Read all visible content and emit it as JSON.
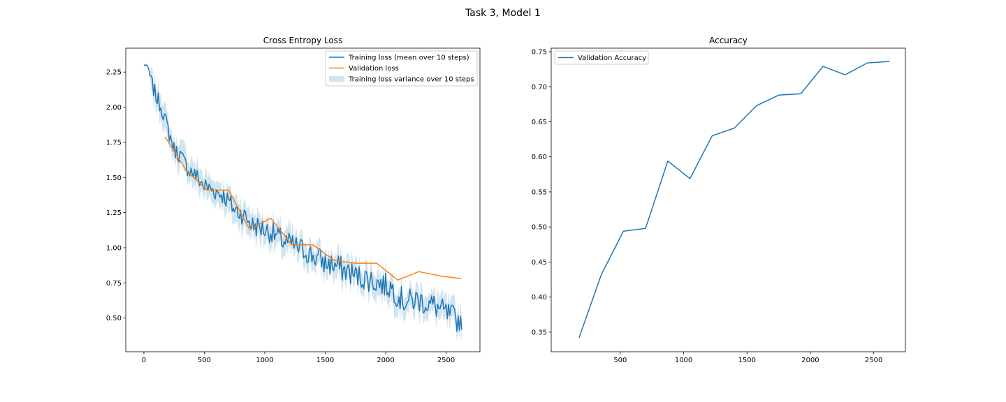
{
  "figure": {
    "suptitle": "Task 3, Model 1"
  },
  "colors": {
    "train": "#1f77b4",
    "val": "#ff7f0e",
    "band": "#1f77b4"
  },
  "chart_data": [
    {
      "type": "line",
      "title": "Cross Entropy Loss",
      "xlabel": "",
      "ylabel": "",
      "xlim": [
        -150,
        2780
      ],
      "ylim": [
        0.26,
        2.42
      ],
      "xticks": [
        0,
        500,
        1000,
        1500,
        2000,
        2500
      ],
      "yticks": [
        0.5,
        0.75,
        1.0,
        1.25,
        1.5,
        1.75,
        2.0,
        2.25
      ],
      "legend_loc": "upper right",
      "legend": [
        "Training loss (mean over 10 steps)",
        "Validation loss",
        "Training loss variance over 10 steps"
      ],
      "train_anchors": {
        "x": [
          0,
          20,
          40,
          60,
          100,
          150,
          200,
          250,
          300,
          350,
          400,
          450,
          500,
          550,
          600,
          650,
          700,
          750,
          800,
          850,
          900,
          950,
          1000,
          1050,
          1100,
          1150,
          1200,
          1250,
          1300,
          1350,
          1400,
          1450,
          1500,
          1550,
          1600,
          1650,
          1700,
          1750,
          1800,
          1850,
          1900,
          1950,
          2000,
          2050,
          2100,
          2150,
          2200,
          2250,
          2300,
          2350,
          2400,
          2450,
          2500,
          2550,
          2600,
          2630
        ],
        "y": [
          2.3,
          2.3,
          2.27,
          2.18,
          2.08,
          1.99,
          1.84,
          1.7,
          1.66,
          1.58,
          1.54,
          1.49,
          1.44,
          1.42,
          1.4,
          1.38,
          1.33,
          1.27,
          1.25,
          1.21,
          1.16,
          1.15,
          1.13,
          1.11,
          1.08,
          1.05,
          1.03,
          1.01,
          0.99,
          0.97,
          0.94,
          0.92,
          0.89,
          0.88,
          0.87,
          0.84,
          0.83,
          0.8,
          0.79,
          0.78,
          0.76,
          0.75,
          0.73,
          0.72,
          0.66,
          0.62,
          0.62,
          0.63,
          0.62,
          0.6,
          0.59,
          0.56,
          0.53,
          0.51,
          0.48,
          0.5
        ]
      },
      "train_noise_amplitude": 0.035,
      "band_halfwidth": 0.085,
      "series": [
        {
          "name": "Validation loss",
          "x": [
            175,
            350,
            525,
            700,
            875,
            1050,
            1225,
            1400,
            1575,
            1750,
            1925,
            2100,
            2275,
            2450,
            2625
          ],
          "y": [
            1.79,
            1.55,
            1.41,
            1.41,
            1.13,
            1.21,
            1.02,
            1.02,
            0.91,
            0.89,
            0.89,
            0.77,
            0.83,
            0.8,
            0.78
          ]
        }
      ]
    },
    {
      "type": "line",
      "title": "Accuracy",
      "xlabel": "",
      "ylabel": "",
      "xlim": [
        -45,
        2750
      ],
      "ylim": [
        0.322,
        0.755
      ],
      "xticks": [
        500,
        1000,
        1500,
        2000,
        2500
      ],
      "yticks": [
        0.35,
        0.4,
        0.45,
        0.5,
        0.55,
        0.6,
        0.65,
        0.7,
        0.75
      ],
      "legend_loc": "upper left",
      "series": [
        {
          "name": "Validation Accuracy",
          "x": [
            175,
            350,
            525,
            700,
            875,
            1050,
            1225,
            1400,
            1575,
            1750,
            1925,
            2100,
            2275,
            2450,
            2625
          ],
          "y": [
            0.342,
            0.432,
            0.494,
            0.498,
            0.594,
            0.569,
            0.63,
            0.641,
            0.673,
            0.688,
            0.69,
            0.729,
            0.717,
            0.734,
            0.736
          ]
        }
      ]
    }
  ]
}
